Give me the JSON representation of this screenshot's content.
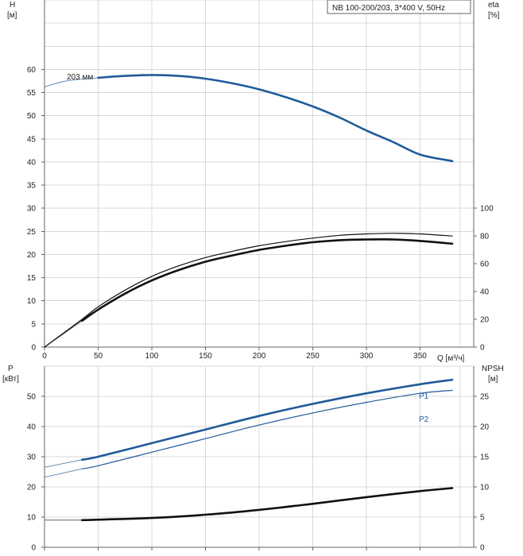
{
  "title": "NB 100-200/203, 3*400 V, 50Hz",
  "colors": {
    "blue": "#1f5b9a",
    "black": "#111111"
  },
  "top": {
    "y_left_label": "H",
    "y_left_unit": "[м]",
    "y_right_label": "eta",
    "y_right_unit": "[%]",
    "x_label": "Q [м³/ч]",
    "curve_label": "203 мм"
  },
  "bottom": {
    "y_left_label": "P",
    "y_left_unit": "[кВт]",
    "y_right_label": "NPSH",
    "y_right_unit": "[м]",
    "p1_label": "P1",
    "p2_label": "P2"
  },
  "chart_data": [
    {
      "type": "line",
      "title": "NB 100-200/203, 3*400 V, 50Hz",
      "xlabel": "Q [м³/ч]",
      "ylabel": "H [м]",
      "y2label": "eta [%]",
      "xlim": [
        0,
        400
      ],
      "ylim": [
        0,
        75
      ],
      "y2lim": [
        0,
        250
      ],
      "x_ticks": [
        0,
        50,
        100,
        150,
        200,
        250,
        300,
        350
      ],
      "y_ticks": [
        0,
        5,
        10,
        15,
        20,
        25,
        30,
        35,
        40,
        45,
        50,
        55,
        60
      ],
      "y2_ticks": [
        0,
        20,
        40,
        60,
        80,
        100
      ],
      "grid": true,
      "series": [
        {
          "name": "203 мм",
          "axis": "left",
          "color": "blue",
          "thin_x": [
            0,
            20,
            50
          ],
          "thin_y": [
            56.2,
            57.5,
            58.2
          ],
          "x": [
            50,
            75,
            100,
            125,
            150,
            175,
            200,
            225,
            250,
            275,
            300,
            325,
            350,
            380
          ],
          "y": [
            58.2,
            58.6,
            58.8,
            58.6,
            58.0,
            57.0,
            55.7,
            54.0,
            52.0,
            49.6,
            46.8,
            44.3,
            41.6,
            40.2
          ]
        },
        {
          "axis": "right",
          "color": "black",
          "width": "thin",
          "x": [
            0,
            35,
            50,
            75,
            100,
            125,
            150,
            175,
            200,
            225,
            250,
            275,
            300,
            325,
            350,
            380
          ],
          "y": [
            0,
            20,
            29,
            41,
            51,
            58.5,
            64.5,
            69,
            73,
            76,
            78.5,
            80.5,
            81.5,
            82,
            81.5,
            80
          ]
        },
        {
          "axis": "right",
          "color": "black",
          "width": "thick",
          "thin_x": [
            0,
            35
          ],
          "thin_y": [
            0,
            19
          ],
          "x": [
            35,
            50,
            75,
            100,
            125,
            150,
            175,
            200,
            225,
            250,
            275,
            300,
            325,
            350,
            380
          ],
          "y": [
            19,
            27,
            38.5,
            48,
            55.5,
            61.5,
            66,
            70,
            73,
            75.5,
            77,
            77.5,
            77.5,
            76.5,
            74.5
          ]
        }
      ]
    },
    {
      "type": "line",
      "ylabel": "P [кВт]",
      "y2label": "NPSH [м]",
      "xlim": [
        0,
        400
      ],
      "ylim": [
        0,
        60
      ],
      "y2lim": [
        0,
        30
      ],
      "x_ticks": [
        0,
        50,
        100,
        150,
        200,
        250,
        300,
        350
      ],
      "y_ticks": [
        0,
        10,
        20,
        30,
        40,
        50
      ],
      "y2_ticks": [
        0,
        5,
        10,
        15,
        20,
        25
      ],
      "grid": true,
      "series": [
        {
          "name": "P1",
          "axis": "left",
          "color": "blue",
          "width": "thick",
          "thin_x": [
            0,
            35
          ],
          "thin_y": [
            26.5,
            29
          ],
          "x": [
            35,
            50,
            100,
            150,
            200,
            250,
            300,
            350,
            380
          ],
          "y": [
            29,
            30,
            34.5,
            39,
            43.5,
            47.5,
            51,
            54,
            55.5
          ]
        },
        {
          "name": "P2",
          "axis": "left",
          "color": "blue",
          "width": "thin",
          "thin_x": [
            0,
            35
          ],
          "thin_y": [
            23.2,
            26
          ],
          "x": [
            35,
            50,
            100,
            150,
            200,
            250,
            300,
            350,
            380
          ],
          "y": [
            26,
            27,
            31.5,
            36,
            40.5,
            44.5,
            48,
            51,
            52
          ]
        },
        {
          "axis": "right",
          "color": "black",
          "width": "thick",
          "thin_x": [
            0,
            35
          ],
          "thin_y": [
            4.5,
            4.5
          ],
          "x": [
            35,
            100,
            150,
            200,
            250,
            300,
            350,
            380
          ],
          "y": [
            4.5,
            4.85,
            5.4,
            6.2,
            7.2,
            8.3,
            9.3,
            9.8
          ]
        }
      ]
    }
  ]
}
